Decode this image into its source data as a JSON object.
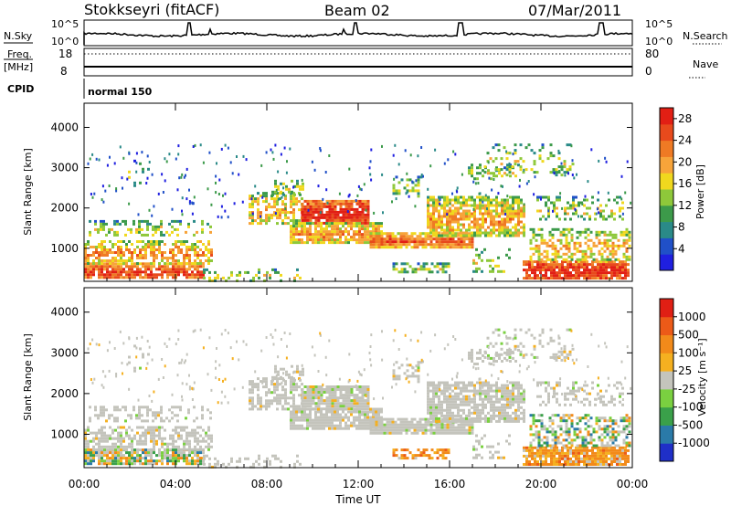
{
  "header": {
    "station": "Stokkseyri (fitACF)",
    "beam": "Beam 02",
    "date": "07/Mar/2011"
  },
  "panels": {
    "nsky": {
      "left_label": "N.Sky",
      "right_label": "N.Search",
      "ticks_left": [
        "10^5",
        "10^0"
      ],
      "ticks_right": [
        "10^5",
        "10^0"
      ]
    },
    "freq": {
      "label_top": "Freq.",
      "label_unit": "[MHz]",
      "ticks_left": [
        "18",
        "8"
      ],
      "right_label": "Nave",
      "ticks_right": [
        "80",
        "0"
      ]
    },
    "cpid": {
      "label": "CPID",
      "program": "normal 150"
    }
  },
  "chart_data": [
    {
      "type": "heatmap",
      "ylabel": "Slant Range [km]",
      "yticks": [
        1000,
        2000,
        3000,
        4000
      ],
      "ylim": [
        180,
        4600
      ],
      "xlim_hours": [
        0,
        24
      ],
      "colorbar": {
        "label": "Power [dB]",
        "ticks": [
          4,
          8,
          12,
          16,
          20,
          24,
          28
        ],
        "range": [
          0,
          30
        ],
        "colors": [
          "#1f1fe0",
          "#2050c8",
          "#2a8a88",
          "#3c9a4a",
          "#8ec83a",
          "#f0d81e",
          "#f7a43a",
          "#ef7a24",
          "#e84a1c",
          "#e21f14"
        ]
      }
    },
    {
      "type": "heatmap",
      "ylabel": "Slant Range [km]",
      "yticks": [
        1000,
        2000,
        3000,
        4000
      ],
      "ylim": [
        180,
        4600
      ],
      "xlim_hours": [
        0,
        24
      ],
      "colorbar": {
        "label": "Velocity [m s⁻¹]",
        "ticks": [
          "1000",
          "500",
          "100",
          "25",
          "-25",
          "-100",
          "-500",
          "-1000"
        ],
        "colors": [
          "#1f2fc8",
          "#2a7aa8",
          "#3aa04a",
          "#7ad040",
          "#c4c4bc",
          "#f5b020",
          "#f28a1a",
          "#ec5a18",
          "#e01f14"
        ]
      }
    }
  ],
  "xaxis": {
    "ticks": [
      "00:00",
      "04:00",
      "08:00",
      "12:00",
      "16:00",
      "20:00",
      "00:00"
    ],
    "label": "Time UT"
  }
}
